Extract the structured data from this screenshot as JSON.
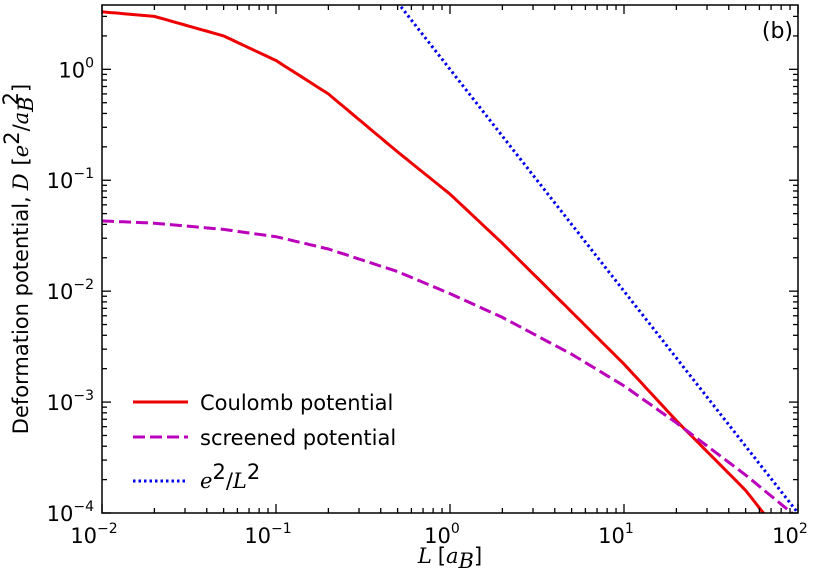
{
  "chart_data": {
    "type": "line",
    "panel_label": "(b)",
    "xlabel": {
      "var": "L",
      "unit_open": "[",
      "unit_var": "a",
      "unit_sub": "B",
      "unit_close": "]"
    },
    "ylabel": {
      "text": "Deformation potential,",
      "var": "D",
      "unit_open": "[",
      "unit_num": "e",
      "unit_num_sup": "2",
      "unit_slash": "/",
      "unit_den": "a",
      "unit_den_sub": "B",
      "unit_den_sup": "2",
      "unit_close": "]"
    },
    "x_scale": "log",
    "y_scale": "log",
    "xlim": [
      0.01,
      100
    ],
    "ylim": [
      0.0001,
      3.8
    ],
    "x_ticks": [
      {
        "base": "10",
        "exp": "−2",
        "value": 0.01
      },
      {
        "base": "10",
        "exp": "−1",
        "value": 0.1
      },
      {
        "base": "10",
        "exp": "0",
        "value": 1
      },
      {
        "base": "10",
        "exp": "1",
        "value": 10
      },
      {
        "base": "10",
        "exp": "2",
        "value": 100
      }
    ],
    "y_ticks": [
      {
        "base": "10",
        "exp": "−4",
        "value": 0.0001
      },
      {
        "base": "10",
        "exp": "−3",
        "value": 0.001
      },
      {
        "base": "10",
        "exp": "−2",
        "value": 0.01
      },
      {
        "base": "10",
        "exp": "−1",
        "value": 0.1
      },
      {
        "base": "10",
        "exp": "0",
        "value": 1
      }
    ],
    "legend_position": "lower-left",
    "series": [
      {
        "name": "Coulomb potential",
        "color": "#ee0000",
        "style": "solid",
        "x": [
          0.01,
          0.02,
          0.05,
          0.1,
          0.2,
          0.5,
          1,
          2,
          5,
          10,
          20,
          50,
          100
        ],
        "y": [
          3.3,
          3.0,
          2.0,
          1.2,
          0.6,
          0.18,
          0.075,
          0.027,
          0.0065,
          0.0022,
          0.00068,
          0.00016,
          4e-05
        ]
      },
      {
        "name": "screened potential",
        "color": "#bb00bb",
        "style": "dashed",
        "x": [
          0.01,
          0.02,
          0.05,
          0.1,
          0.2,
          0.5,
          1,
          2,
          5,
          10,
          20,
          50,
          100
        ],
        "y": [
          0.043,
          0.041,
          0.036,
          0.031,
          0.024,
          0.015,
          0.0095,
          0.0058,
          0.0027,
          0.0014,
          0.00065,
          0.00022,
          9e-05
        ]
      },
      {
        "name": "e²/L²",
        "legend_base1": "e",
        "legend_sup1": "2",
        "legend_slash": "/",
        "legend_base2": "L",
        "legend_sup2": "2",
        "color": "#0000ee",
        "style": "dotted",
        "x": [
          0.5,
          1,
          2,
          5,
          10,
          20,
          50,
          100
        ],
        "y": [
          4.0,
          1.0,
          0.25,
          0.04,
          0.01,
          0.0025,
          0.0004,
          0.0001
        ]
      }
    ]
  }
}
